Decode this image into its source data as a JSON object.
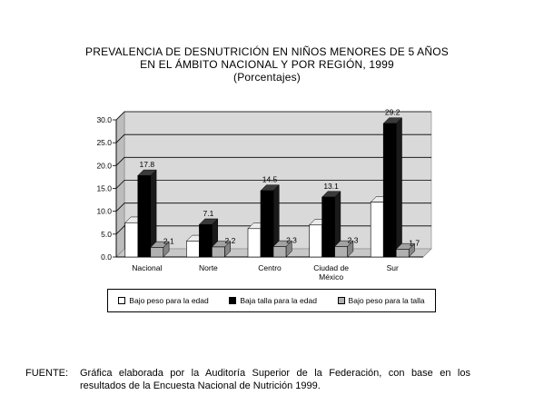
{
  "title": {
    "line1": "PREVALENCIA DE DESNUTRICIÓN EN NIÑOS MENORES DE 5 AÑOS",
    "line2": "EN EL ÁMBITO NACIONAL Y POR REGIÓN, 1999",
    "line3": "(Porcentajes)"
  },
  "chart_data": {
    "type": "bar",
    "categories": [
      "Nacional",
      "Norte",
      "Centro",
      "Ciudad de\nMéxico",
      "Sur"
    ],
    "series": [
      {
        "name": "Bajo peso para la edad",
        "values": [
          7.5,
          3.5,
          6.2,
          7.0,
          12.0
        ],
        "color": "#ffffff",
        "labeled": false
      },
      {
        "name": "Baja talla para la edad",
        "values": [
          17.8,
          7.1,
          14.5,
          13.1,
          29.2
        ],
        "color": "#000000",
        "labeled": true
      },
      {
        "name": "Bajo peso para la talla",
        "values": [
          2.1,
          2.2,
          2.3,
          2.3,
          1.7
        ],
        "color": "#b0b0b0",
        "labeled": true
      }
    ],
    "yticks": [
      "0.0",
      "5.0",
      "10.0",
      "15.0",
      "20.0",
      "25.0",
      "30.0"
    ],
    "ylim": [
      0,
      30
    ],
    "grid": true,
    "legend_position": "bottom"
  },
  "source": {
    "label": "FUENTE:",
    "text": "Gráfica elaborada por la Auditoría Superior de la Federación, con base en los resultados de la Encuesta Nacional de Nutrición 1999."
  }
}
